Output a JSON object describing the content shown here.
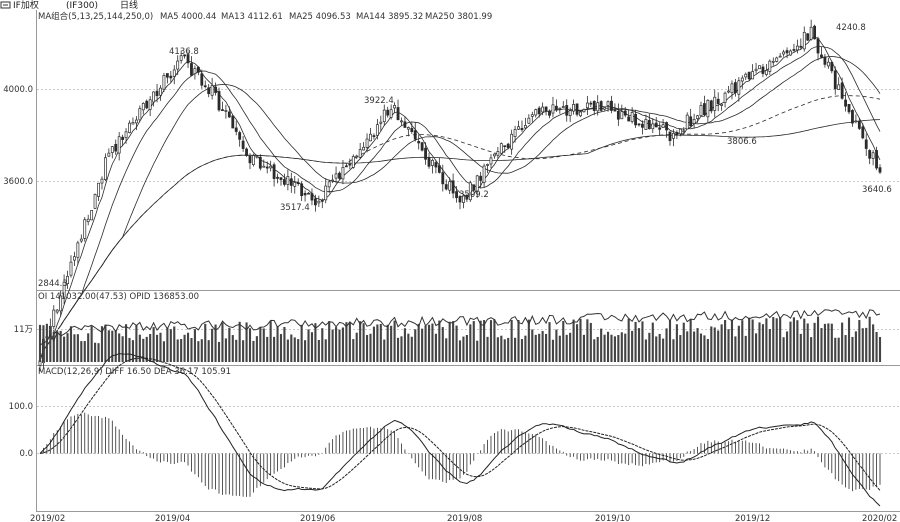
{
  "window": {
    "title": "IF加权",
    "tab": "(IF300)",
    "period": "日线"
  },
  "colors": {
    "background": "#ffffff",
    "ink": "#2b2b2b",
    "grid": "#c9c9c9",
    "candle_up": "#ffffff",
    "candle_down": "#2b2b2b",
    "volume_bar": "#444444"
  },
  "chart_data": [
    {
      "type": "line",
      "panel": "main",
      "indicator_label": "MA组合(5,13,25,144,250,0)",
      "legend": [
        {
          "name": "MA5",
          "value": "4000.44"
        },
        {
          "name": "MA13",
          "value": "4112.61"
        },
        {
          "name": "MA25",
          "value": "4096.53"
        },
        {
          "name": "MA144",
          "value": "3895.32"
        },
        {
          "name": "MA250",
          "value": "3801.99"
        }
      ],
      "y_ticks": [
        "4000.0",
        "3600.0"
      ],
      "x_ticks": [
        "2019/02",
        "2019/04",
        "2019/06",
        "2019/08",
        "2019/10",
        "2019/12",
        "2020/02"
      ],
      "annotations": [
        "4136.8",
        "3922.4",
        "3517.4",
        "3509.2",
        "3806.6",
        "4240.8",
        "3640.6",
        "2844.3"
      ],
      "price_anchors": [
        {
          "x": "2019/02",
          "y": 2844.3
        },
        {
          "x": "2019/03",
          "y": 3720
        },
        {
          "x": "2019/04",
          "y": 4136.8
        },
        {
          "x": "2019/04",
          "y": 3990
        },
        {
          "x": "2019/05",
          "y": 3700
        },
        {
          "x": "2019/06",
          "y": 3517.4
        },
        {
          "x": "2019/07",
          "y": 3922.4
        },
        {
          "x": "2019/08",
          "y": 3509.2
        },
        {
          "x": "2019/09",
          "y": 3890
        },
        {
          "x": "2019/10",
          "y": 3930
        },
        {
          "x": "2019/11",
          "y": 3806.6
        },
        {
          "x": "2020/01",
          "y": 4240.8
        },
        {
          "x": "2020/02",
          "y": 3640.6
        }
      ]
    },
    {
      "type": "bar",
      "panel": "volume",
      "indicator_label": "OI",
      "legend": [
        {
          "name": "OI",
          "value": "141032.00(47.53)"
        },
        {
          "name": "OPID",
          "value": "136853.00"
        }
      ],
      "y_ticks": [
        "11万"
      ]
    },
    {
      "type": "line",
      "panel": "macd",
      "indicator_label": "MACD(12,26,9)",
      "legend": [
        {
          "name": "DIFF",
          "value": "16.50"
        },
        {
          "name": "DEA",
          "value": "36.17"
        },
        {
          "name": "MACD",
          "value": "105.91"
        }
      ],
      "y_ticks": [
        "100.0",
        "0.0"
      ]
    }
  ]
}
